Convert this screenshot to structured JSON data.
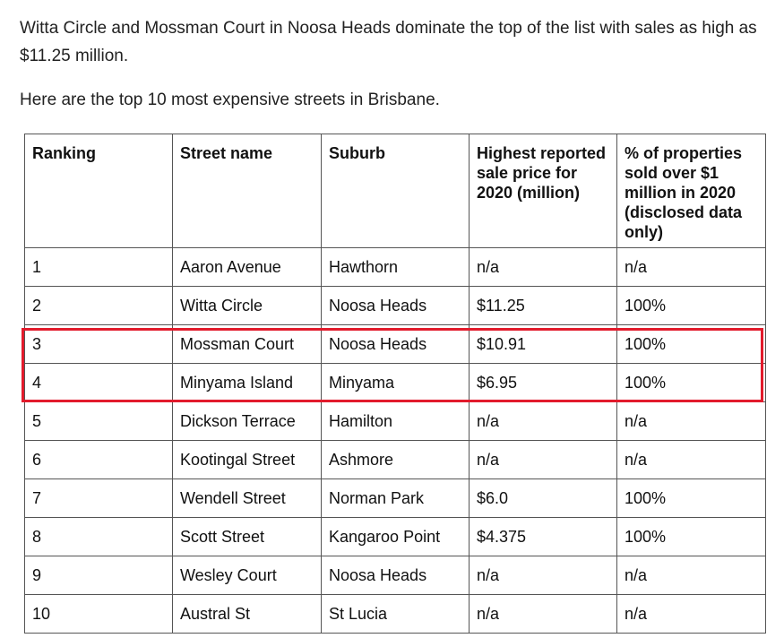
{
  "article": {
    "intro": "Witta Circle and Mossman Court in Noosa Heads dominate the top of the list with sales as high as $11.25 million.",
    "lead": "Here are the top 10 most expensive streets in Brisbane."
  },
  "table": {
    "headers": [
      "Ranking",
      "Street name",
      "Suburb",
      "Highest reported sale price for 2020 (million)",
      "% of properties sold over $1 million in 2020 (disclosed data only)"
    ],
    "rows": [
      [
        "1",
        "Aaron Avenue",
        "Hawthorn",
        "n/a",
        "n/a"
      ],
      [
        "2",
        "Witta Circle",
        "Noosa Heads",
        "$11.25",
        "100%"
      ],
      [
        "3",
        "Mossman Court",
        "Noosa Heads",
        "$10.91",
        "100%"
      ],
      [
        "4",
        "Minyama Island",
        "Minyama",
        "$6.95",
        "100%"
      ],
      [
        "5",
        "Dickson Terrace",
        "Hamilton",
        "n/a",
        "n/a"
      ],
      [
        "6",
        "Kootingal Street",
        "Ashmore",
        "n/a",
        "n/a"
      ],
      [
        "7",
        "Wendell Street",
        "Norman Park",
        "$6.0",
        "100%"
      ],
      [
        "8",
        "Scott Street",
        "Kangaroo Point",
        "$4.375",
        "100%"
      ],
      [
        "9",
        "Wesley Court",
        "Noosa Heads",
        "n/a",
        "n/a"
      ],
      [
        "10",
        "Austral St",
        "St Lucia",
        "n/a",
        "n/a"
      ]
    ]
  },
  "highlight": {
    "color": "#e21b2c",
    "rows": [
      3,
      4
    ]
  }
}
